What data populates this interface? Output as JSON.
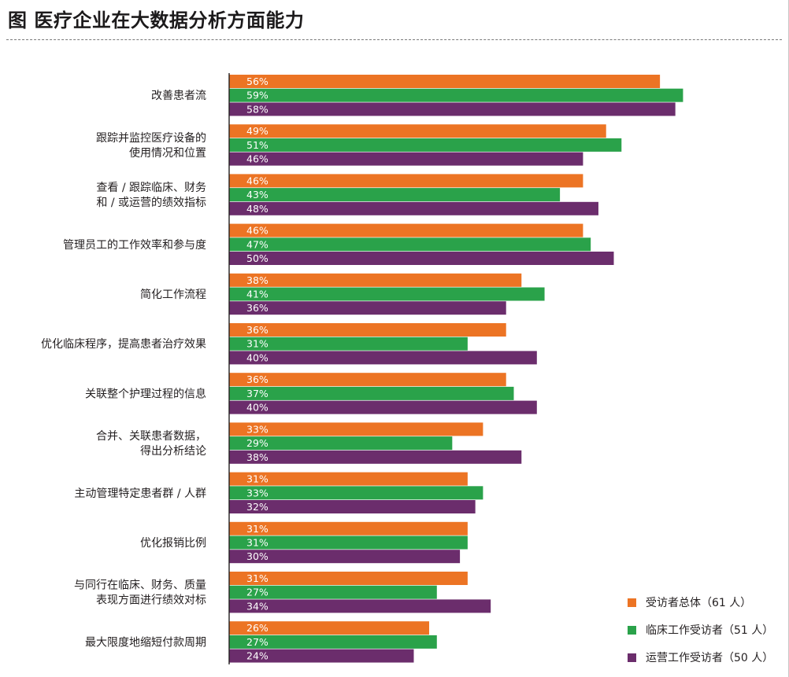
{
  "title": "图  医疗企业在大数据分析方面能力",
  "colors": {
    "series_orange": "#ec7424",
    "series_green": "#2aa24a",
    "series_purple": "#6b2d6c",
    "axis": "#231f20"
  },
  "chart_data": {
    "type": "bar",
    "orientation": "horizontal",
    "value_format": "percent",
    "categories": [
      [
        "改善患者流"
      ],
      [
        "跟踪并监控医疗设备的",
        "使用情况和位置"
      ],
      [
        "查看 / 跟踪临床、财务",
        "和 / 或运营的绩效指标"
      ],
      [
        "管理员工的工作效率和参与度"
      ],
      [
        "简化工作流程"
      ],
      [
        "优化临床程序，提高患者治疗效果"
      ],
      [
        "关联整个护理过程的信息"
      ],
      [
        "合并、关联患者数据，",
        "得出分析结论"
      ],
      [
        "主动管理特定患者群 / 人群"
      ],
      [
        "优化报销比例"
      ],
      [
        "与同行在临床、财务、质量",
        "表现方面进行绩效对标"
      ],
      [
        "最大限度地缩短付款周期"
      ]
    ],
    "series": [
      {
        "name": "受访者总体（61 人）",
        "color": "#ec7424",
        "values": [
          56,
          49,
          46,
          46,
          38,
          36,
          36,
          33,
          31,
          31,
          31,
          26
        ]
      },
      {
        "name": "临床工作受访者（51 人）",
        "color": "#2aa24a",
        "values": [
          59,
          51,
          43,
          47,
          41,
          31,
          37,
          29,
          33,
          31,
          27,
          27
        ]
      },
      {
        "name": "运营工作受访者（50 人）",
        "color": "#6b2d6c",
        "values": [
          58,
          46,
          48,
          50,
          36,
          40,
          40,
          38,
          32,
          30,
          34,
          24
        ]
      }
    ],
    "legend_position": "bottom-right",
    "grid": false
  }
}
